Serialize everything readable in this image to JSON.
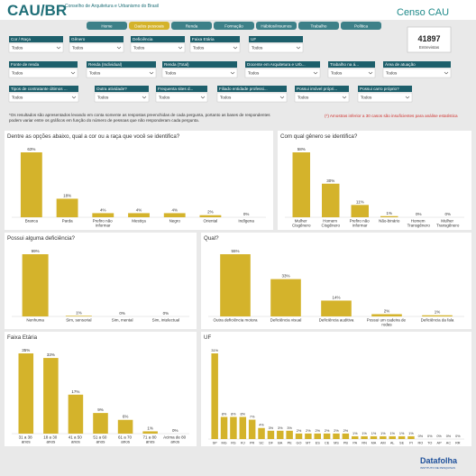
{
  "header": {
    "logo": "CAU/BR",
    "org": "Conselho de Arquitetura e Urbanismo do Brasil",
    "title": "Censo CAU"
  },
  "nav": {
    "items": [
      "Home",
      "Dados pessoais",
      "Renda",
      "Formação",
      "Hábitos/Insumos",
      "Trabalho",
      "Política"
    ],
    "active": 1
  },
  "count": {
    "value": "41897",
    "label": "Entrevistas"
  },
  "filters": [
    [
      {
        "label": "Cor / Raça",
        "value": "Todos"
      },
      {
        "label": "Gênero",
        "value": "Todos"
      },
      {
        "label": "Deficiência",
        "value": "Todos"
      },
      {
        "label": "Faixa Etária",
        "value": "Todos"
      },
      {
        "label": "UF",
        "value": "Todos"
      }
    ],
    [
      {
        "label": "Fonte de renda",
        "value": "Todos"
      },
      {
        "label": "Renda (Individual)",
        "value": "Todos"
      },
      {
        "label": "Renda (Total)",
        "value": "Todos"
      },
      {
        "label": "Docente em Arquitetura e Urb...",
        "value": "Todos"
      },
      {
        "label": "Trabalho na á...",
        "value": "Todos"
      },
      {
        "label": "Área de atuação",
        "value": "Todos"
      }
    ],
    [
      {
        "label": "Tipos de contratante últimos ...",
        "value": "Todos"
      },
      {
        "label": "Outra atividade?",
        "value": "Todos"
      },
      {
        "label": "Frequenta sites d...",
        "value": "Todos"
      },
      {
        "label": "Filiado entidade professi...",
        "value": "Todos"
      },
      {
        "label": "Possui imóvel própri...",
        "value": "Todos"
      },
      {
        "label": "Possui carro próprio?",
        "value": "Todos"
      }
    ]
  ],
  "notes": {
    "main": "*Os resultados são apresentados levando em conta somente as respostas preenchidas de cada pergunta, portanto as bases de respondentes podem variar entre os gráficos em função do número de pessoas que não responderam cada pergunta.",
    "warning": "(*) Amostras inferior a 30 casos são insuficientes para análise estatística"
  },
  "chart_data": [
    {
      "type": "bar",
      "title": "Dentre as opções abaixo, qual a cor ou a raça que você se identifica?",
      "color": "#d4b32b",
      "categories": [
        "Branca",
        "Parda",
        "Prefiro não informar",
        "Mestiça",
        "Negro",
        "Oriental",
        "Indígena"
      ],
      "values": [
        63,
        18,
        4,
        4,
        4,
        2,
        0
      ],
      "value_labels": [
        "63%",
        "18%",
        "4%",
        "4%",
        "4%",
        "2%",
        "0%"
      ]
    },
    {
      "type": "bar",
      "title": "Com qual gênero se identifica?",
      "color": "#d4b32b",
      "categories": [
        "Mulher Cisgênero",
        "Homem Cisgênero",
        "Prefiro não informar",
        "Não-binário",
        "Homem Transgênero",
        "Mulher Transgênero"
      ],
      "values": [
        58,
        30,
        11,
        1,
        0,
        0
      ],
      "value_labels": [
        "58%",
        "30%",
        "11%",
        "1%",
        "0%",
        "0%"
      ]
    },
    {
      "type": "bar",
      "title": "Possui alguma deficiência?",
      "color": "#d4b32b",
      "categories": [
        "Nenhuma",
        "Sim, sensorial",
        "Sim, mental",
        "Sim, intelectual"
      ],
      "values": [
        99,
        1,
        0,
        0
      ],
      "value_labels": [
        "99%",
        "1%",
        "0%",
        "0%"
      ]
    },
    {
      "type": "bar",
      "title": "Qual?",
      "color": "#d4b32b",
      "categories": [
        "Outra deficiência motora",
        "Deficiência visual",
        "Deficiência auditiva",
        "Possui um cadeira de rodas",
        "Deficiência da fala"
      ],
      "values": [
        55,
        33,
        14,
        2,
        1
      ],
      "value_labels": [
        "55%",
        "33%",
        "14%",
        "2%",
        "1%"
      ]
    },
    {
      "type": "bar",
      "title": "Faixa Etária",
      "color": "#d4b32b",
      "categories": [
        "31 a 38 anos",
        "18 a 30 anos",
        "41 a 50 anos",
        "51 a 60 anos",
        "61 a 70 anos",
        "71 a 80 anos",
        "Acima de 80 anos"
      ],
      "values": [
        35,
        33,
        17,
        9,
        6,
        1,
        0
      ],
      "value_labels": [
        "35%",
        "33%",
        "17%",
        "9%",
        "6%",
        "1%",
        "0%"
      ]
    },
    {
      "type": "bar",
      "title": "UF",
      "color": "#d4b32b",
      "categories": [
        "SP",
        "MG",
        "RS",
        "RJ",
        "PR",
        "SC",
        "DF",
        "BA",
        "PE",
        "GO",
        "MT",
        "ES",
        "CE",
        "MS",
        "PB",
        "PA",
        "RN",
        "MA",
        "AM",
        "AL",
        "SE",
        "PI",
        "RO",
        "TO",
        "AP",
        "AC",
        "RR"
      ],
      "values": [
        31,
        8,
        8,
        8,
        7,
        4,
        3,
        3,
        3,
        2,
        2,
        2,
        2,
        2,
        2,
        1,
        1,
        1,
        1,
        1,
        1,
        1,
        0,
        0,
        0,
        0,
        0
      ],
      "value_labels": [
        "31%",
        "8%",
        "8%",
        "8%",
        "7%",
        "4%",
        "3%",
        "3%",
        "3%",
        "2%",
        "2%",
        "2%",
        "2%",
        "2%",
        "2%",
        "1%",
        "1%",
        "1%",
        "1%",
        "1%",
        "1%",
        "1%",
        "0%",
        "0%",
        "0%",
        "0%",
        "0%"
      ]
    }
  ],
  "footer": {
    "brand": "Datafolha",
    "tagline": "INSTITUTO DE PESQUISAS"
  }
}
